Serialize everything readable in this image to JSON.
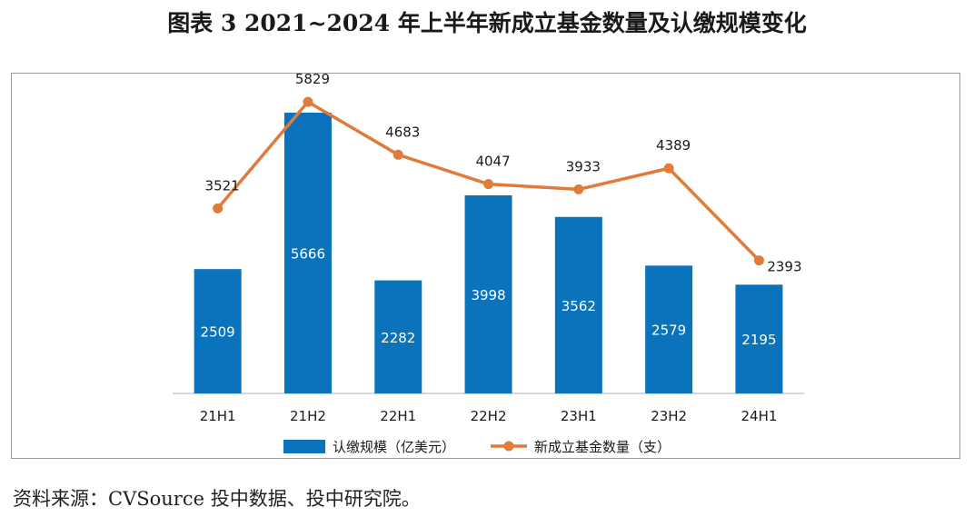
{
  "title": "图表 3  2021~2024 年上半年新成立基金数量及认缴规模变化",
  "source": "资料来源：CVSource 投中数据、投中研究院。",
  "chart_data": {
    "type": "bar",
    "categories": [
      "21H1",
      "21H2",
      "22H1",
      "22H2",
      "23H1",
      "23H2",
      "24H1"
    ],
    "series": [
      {
        "name": "认缴规模（亿美元）",
        "type": "bar",
        "color": "#0b73bb",
        "values": [
          2509,
          5666,
          2282,
          3998,
          3562,
          2579,
          2195
        ]
      },
      {
        "name": "新成立基金数量（支）",
        "type": "line",
        "color": "#e07b39",
        "values": [
          3521,
          5829,
          4683,
          4047,
          3933,
          4389,
          2393
        ]
      }
    ],
    "legend_position": "bottom",
    "grid": false
  }
}
